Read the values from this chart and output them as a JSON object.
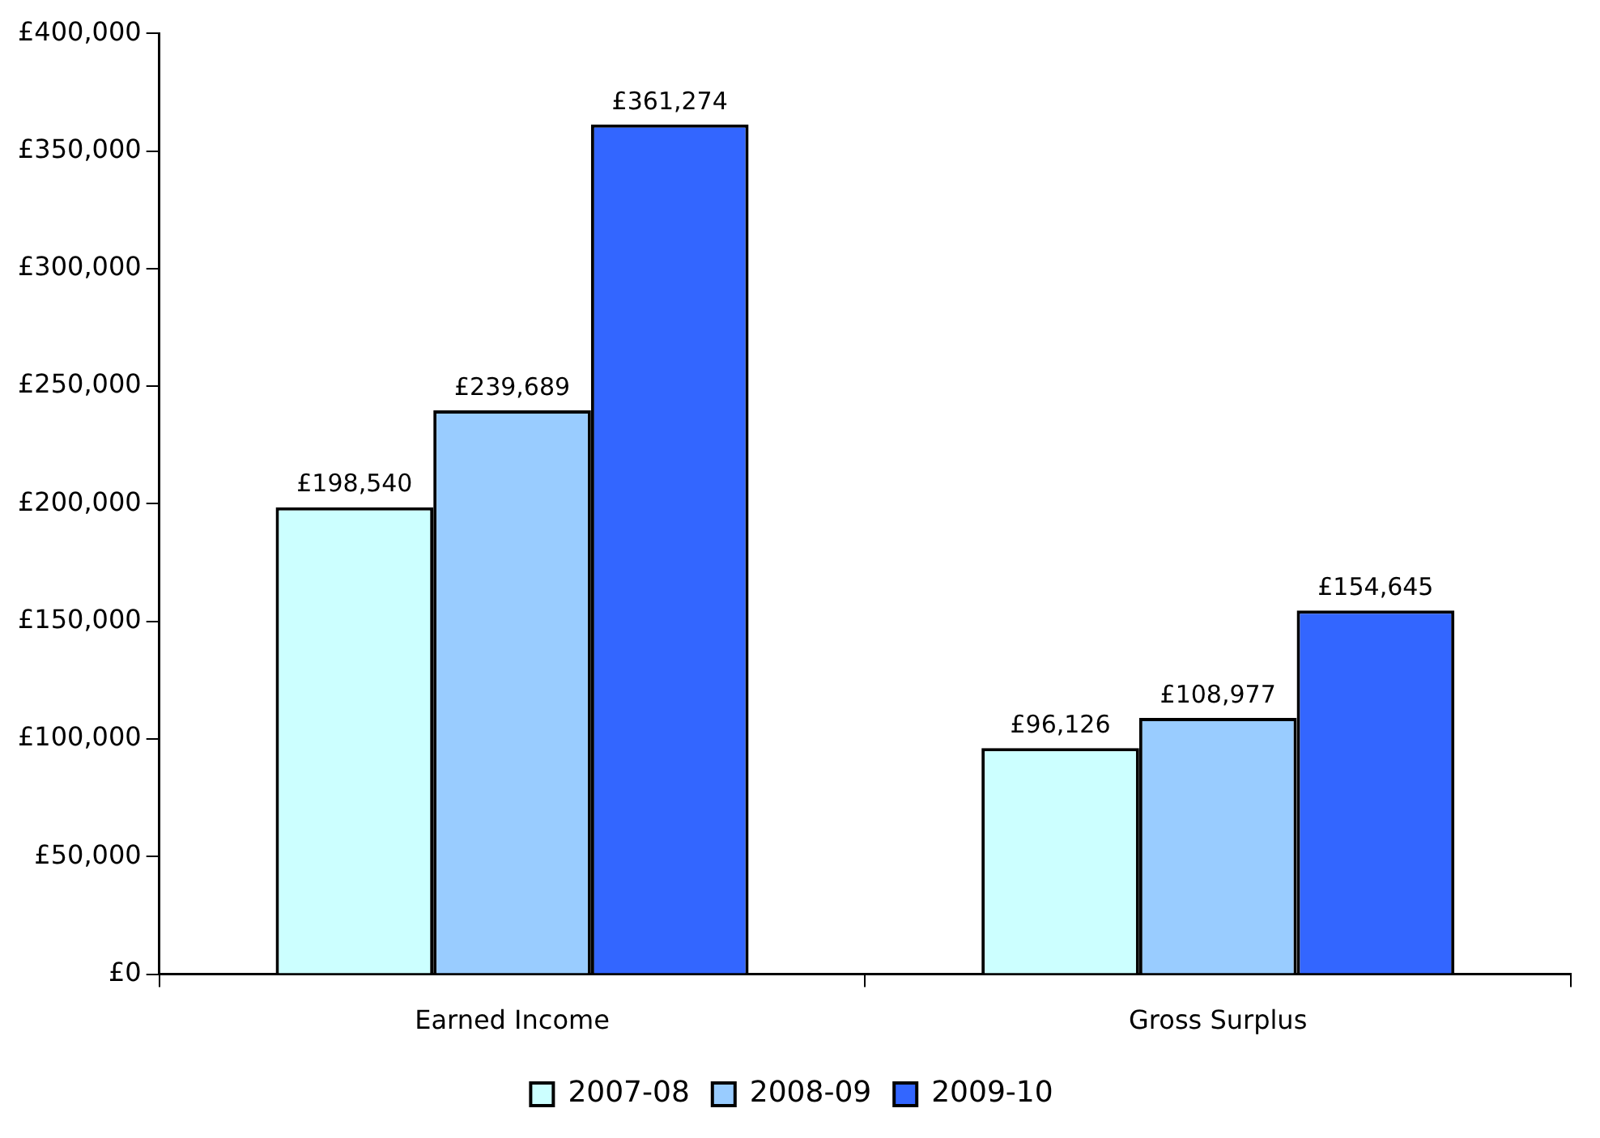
{
  "chart_data": {
    "type": "bar",
    "categories": [
      "Earned Income",
      "Gross Surplus"
    ],
    "series": [
      {
        "name": "2007-08",
        "color": "#ccffff",
        "values": [
          198540,
          96126
        ],
        "value_labels": [
          "£198,540",
          "£96,126"
        ]
      },
      {
        "name": "2008-09",
        "color": "#99ccff",
        "values": [
          239689,
          108977
        ],
        "value_labels": [
          "£239,689",
          "£108,977"
        ]
      },
      {
        "name": "2009-10",
        "color": "#3366ff",
        "values": [
          361274,
          154645
        ],
        "value_labels": [
          "£361,274",
          "£154,645"
        ]
      }
    ],
    "ylim": [
      0,
      400000
    ],
    "yticks": [
      {
        "value": 0,
        "label": "£0"
      },
      {
        "value": 50000,
        "label": "£50,000"
      },
      {
        "value": 100000,
        "label": "£100,000"
      },
      {
        "value": 150000,
        "label": "£150,000"
      },
      {
        "value": 200000,
        "label": "£200,000"
      },
      {
        "value": 250000,
        "label": "£250,000"
      },
      {
        "value": 300000,
        "label": "£300,000"
      },
      {
        "value": 350000,
        "label": "£350,000"
      },
      {
        "value": 400000,
        "label": "£400,000"
      }
    ],
    "grid": false,
    "legend": "bottom"
  }
}
